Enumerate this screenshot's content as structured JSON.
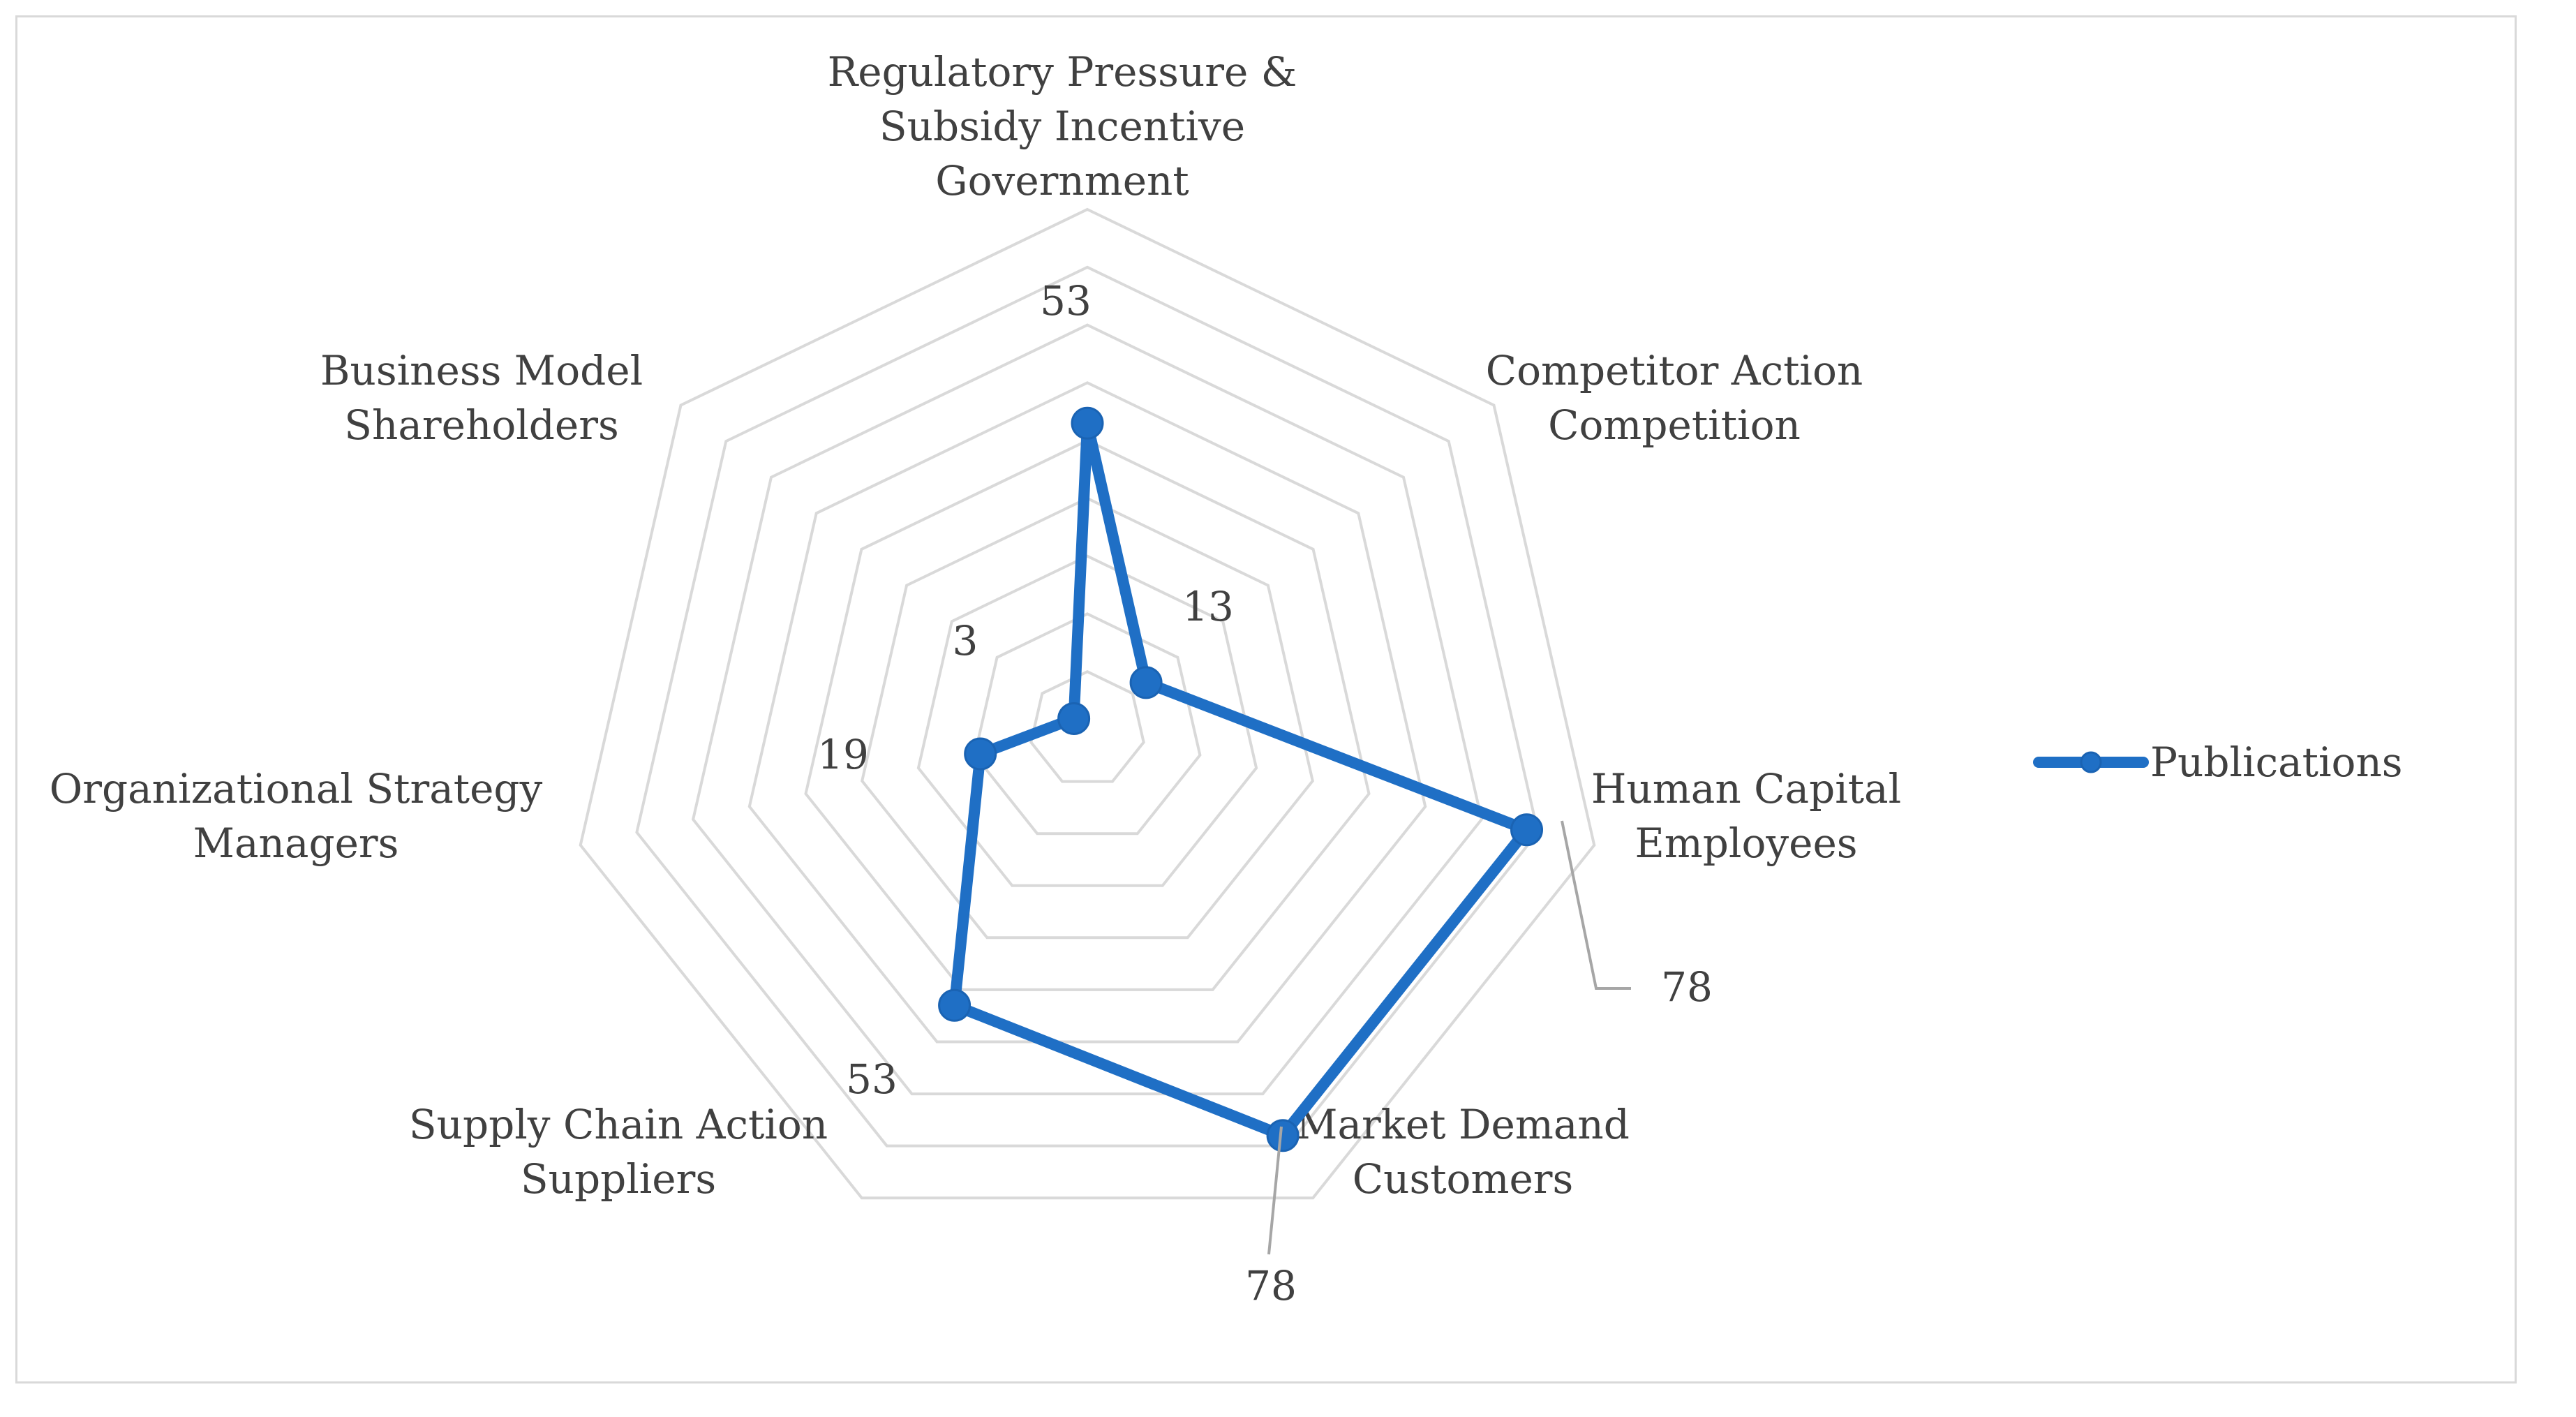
{
  "chart_data": {
    "type": "radar",
    "title": "",
    "categories": [
      [
        "Regulatory Pressure &",
        "Subsidy Incentive",
        "Government"
      ],
      [
        "Competitor Action",
        "Competition"
      ],
      [
        "Human Capital",
        "Employees"
      ],
      [
        "Market Demand",
        "Customers"
      ],
      [
        "Supply Chain Action",
        "Suppliers"
      ],
      [
        "Organizational Strategy",
        "Managers"
      ],
      [
        "Business Model",
        "Shareholders"
      ]
    ],
    "series": [
      {
        "name": "Publications",
        "values": [
          53,
          13,
          78,
          78,
          53,
          19,
          3
        ],
        "data_labels": [
          "53",
          "13",
          "78",
          "78",
          "53",
          "19",
          "3"
        ],
        "color": "#1f6fc5"
      }
    ],
    "rmax": 90,
    "grid_levels": 9,
    "grid": true,
    "legend": "right"
  }
}
